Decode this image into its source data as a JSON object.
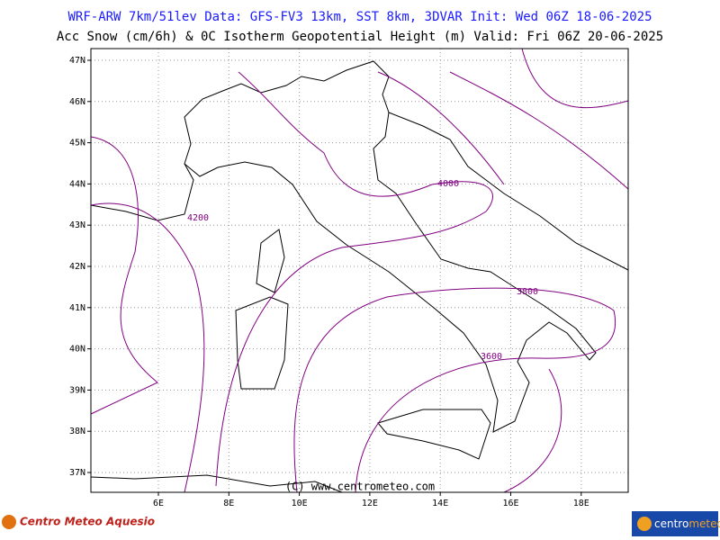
{
  "header": {
    "line1": "WRF-ARW 7km/51lev  Data: GFS-FV3 13km, SST 8km, 3DVAR  Init: Wed 06Z 18-06-2025",
    "line2": "Acc Snow (cm/6h) & 0C Isotherm Geopotential Height (m)  Valid: Fri 06Z 20-06-2025"
  },
  "map": {
    "lat_labels": [
      "47N",
      "46N",
      "45N",
      "44N",
      "43N",
      "42N",
      "41N",
      "40N",
      "39N",
      "38N",
      "37N"
    ],
    "lon_labels": [
      "6E",
      "8E",
      "10E",
      "12E",
      "14E",
      "16E",
      "18E"
    ],
    "contour_labels": [
      "4000",
      "4200",
      "3800",
      "3600"
    ],
    "copyright": "(C) www.centrometeo.com"
  },
  "footer": {
    "left_logo": "Centro Meteo Aquesio",
    "right_logo_a": "centro",
    "right_logo_b": "meteo"
  }
}
